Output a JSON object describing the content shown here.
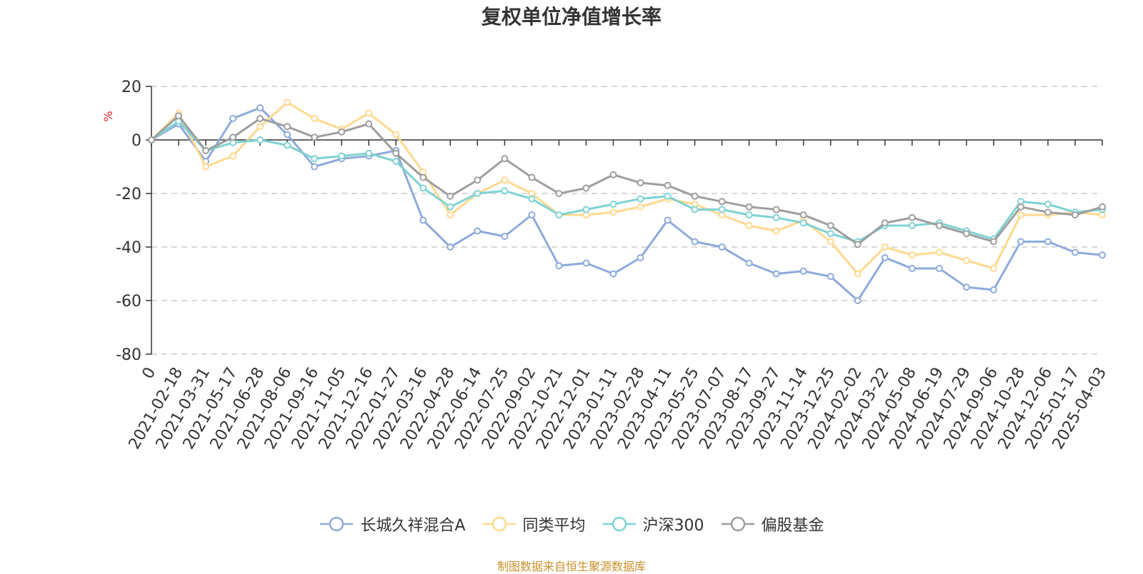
{
  "chart_data": {
    "type": "line",
    "title": "复权单位净值增长率",
    "ylabel": "%",
    "xlabel": "",
    "ylim": [
      -80,
      20
    ],
    "yticks": [
      "20",
      "0",
      "-20",
      "-40",
      "-60",
      "-80"
    ],
    "ytick_values": [
      20,
      0,
      -20,
      -40,
      -60,
      -80
    ],
    "grid": true,
    "legend_position": "bottom",
    "x_labels": [
      "0",
      "2021-02-18",
      "2021-03-31",
      "2021-05-17",
      "2021-06-28",
      "2021-08-06",
      "2021-09-16",
      "2021-11-05",
      "2021-12-16",
      "2022-01-27",
      "2022-03-16",
      "2022-04-28",
      "2022-06-14",
      "2022-07-25",
      "2022-09-02",
      "2022-10-21",
      "2022-12-01",
      "2023-01-11",
      "2023-02-28",
      "2023-04-11",
      "2023-05-25",
      "2023-07-07",
      "2023-08-17",
      "2023-09-27",
      "2023-11-14",
      "2023-12-25",
      "2024-02-02",
      "2024-03-22",
      "2024-05-08",
      "2024-06-19",
      "2024-07-29",
      "2024-09-06",
      "2024-10-28",
      "2024-12-06",
      "2025-01-17",
      "2025-04-03"
    ],
    "series": [
      {
        "name": "长城久祥混合A",
        "color": "#8eaadb",
        "values": [
          0,
          6,
          -8,
          8,
          12,
          2,
          -10,
          -7,
          -6,
          -4,
          -30,
          -40,
          -34,
          -36,
          -28,
          -47,
          -46,
          -50,
          -44,
          -30,
          -38,
          -40,
          -46,
          -50,
          -49,
          -51,
          -60,
          -44,
          -48,
          -48,
          -55,
          -56,
          -38,
          -38,
          -42,
          -43
        ]
      },
      {
        "name": "同类平均",
        "color": "#ffd98f",
        "values": [
          0,
          10,
          -10,
          -6,
          5,
          14,
          8,
          4,
          10,
          2,
          -12,
          -28,
          -20,
          -15,
          -20,
          -28,
          -28,
          -27,
          -25,
          -22,
          -24,
          -28,
          -32,
          -34,
          -30,
          -38,
          -50,
          -40,
          -43,
          -42,
          -45,
          -48,
          -28,
          -28,
          -27,
          -28
        ]
      },
      {
        "name": "沪深300",
        "color": "#7fd2d2",
        "values": [
          0,
          7,
          -4,
          -1,
          0,
          -2,
          -7,
          -6,
          -5,
          -8,
          -18,
          -25,
          -20,
          -19,
          -22,
          -28,
          -26,
          -24,
          -22,
          -21,
          -26,
          -26,
          -28,
          -29,
          -31,
          -35,
          -38,
          -32,
          -32,
          -31,
          -34,
          -37,
          -23,
          -24,
          -27,
          -26
        ]
      },
      {
        "name": "偏股基金",
        "color": "#9e9e9e",
        "values": [
          0,
          9,
          -4,
          1,
          8,
          5,
          1,
          3,
          6,
          -5,
          -14,
          -21,
          -15,
          -7,
          -14,
          -20,
          -18,
          -13,
          -16,
          -17,
          -21,
          -23,
          -25,
          -26,
          -28,
          -32,
          -39,
          -31,
          -29,
          -32,
          -35,
          -38,
          -25,
          -27,
          -28,
          -25
        ]
      }
    ]
  },
  "legend": {
    "items": [
      "长城久祥混合A",
      "同类平均",
      "沪深300",
      "偏股基金"
    ]
  },
  "footer": {
    "source_note": "制图数据来自恒生聚源数据库"
  }
}
